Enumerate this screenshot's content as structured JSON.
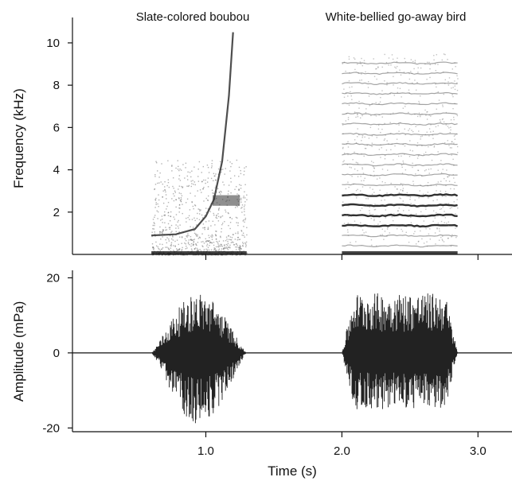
{
  "chart_data": [
    {
      "type": "heatmap",
      "title": "",
      "xlabel": "",
      "ylabel": "Frequency (kHz)",
      "xlim": [
        0.02,
        3.25
      ],
      "ylim": [
        0,
        11.2
      ],
      "yticks": [
        "2",
        "4",
        "6",
        "8",
        "10"
      ],
      "annotations": [
        "Slate-colored boubou",
        "White-bellied go-away bird"
      ],
      "calls": [
        {
          "name": "Slate-colored boubou",
          "start_s": 0.6,
          "end_s": 1.3,
          "fundamental_contour_khz": [
            [
              0.6,
              0.9
            ],
            [
              0.78,
              0.95
            ],
            [
              0.92,
              1.2
            ],
            [
              1.0,
              1.8
            ],
            [
              1.06,
              2.6
            ],
            [
              1.12,
              4.4
            ],
            [
              1.17,
              7.5
            ],
            [
              1.2,
              10.5
            ]
          ],
          "band_khz": [
            2.3,
            2.8
          ]
        },
        {
          "name": "White-bellied go-away bird",
          "start_s": 2.0,
          "end_s": 2.85,
          "harmonic_range_khz": [
            0.4,
            9.5
          ],
          "harmonic_spacing_khz": 0.48,
          "strongest_band_khz": [
            1.0,
            3.0
          ]
        }
      ],
      "grid": false
    },
    {
      "type": "line",
      "title": "",
      "xlabel": "Time (s)",
      "ylabel": "Amplitude (mPa)",
      "xlim": [
        0.02,
        3.25
      ],
      "ylim": [
        -21,
        22
      ],
      "xticks": [
        "1.0",
        "2.0",
        "3.0"
      ],
      "yticks": [
        "20",
        "0",
        "-20"
      ],
      "series": [
        {
          "bursts": [
            {
              "start_s": 0.6,
              "end_s": 1.3,
              "peak_pos_mPa": 16,
              "peak_neg_mPa": -19
            },
            {
              "start_s": 2.0,
              "end_s": 2.85,
              "peak_pos_mPa": 16,
              "peak_neg_mPa": -15
            }
          ]
        }
      ],
      "grid": false
    }
  ]
}
